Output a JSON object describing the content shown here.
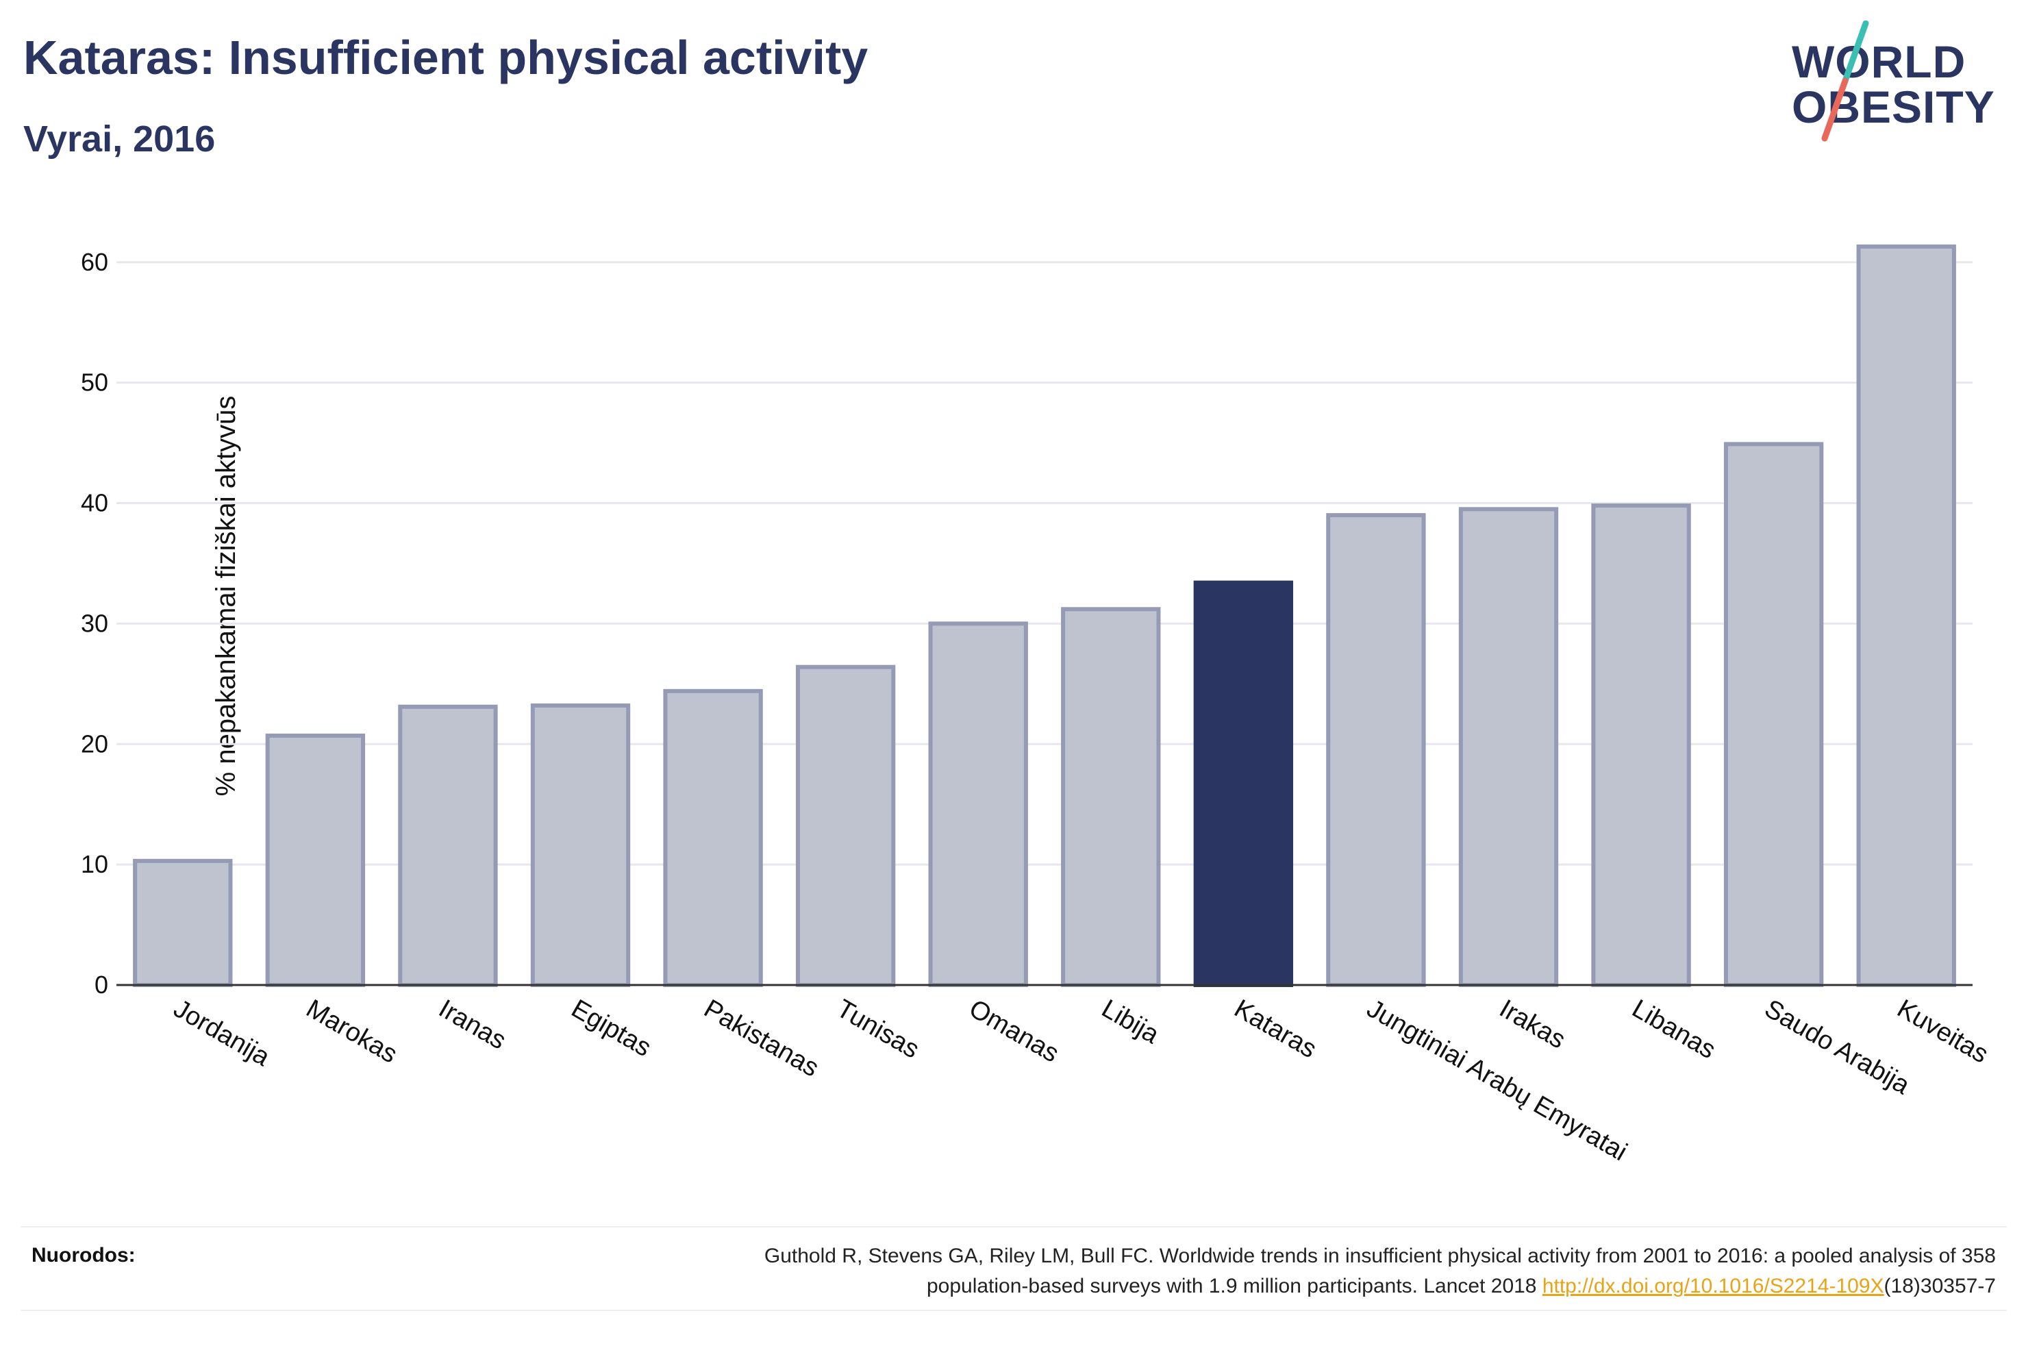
{
  "header": {
    "title": "Kataras: Insufficient physical activity",
    "subtitle": "Vyrai, 2016"
  },
  "logo": {
    "line1": "WORLD",
    "line2": "OBESITY",
    "slash_colors": [
      "#3bbfb2",
      "#e8685a"
    ]
  },
  "chart_data": {
    "type": "bar",
    "title": "Kataras: Insufficient physical activity",
    "subtitle": "Vyrai, 2016",
    "xlabel": "",
    "ylabel": "% nepakankamai fiziškai aktyvūs",
    "ylim": [
      0,
      63
    ],
    "yticks": [
      0,
      10,
      20,
      30,
      40,
      50,
      60
    ],
    "grid": true,
    "categories": [
      "Jordanija",
      "Marokas",
      "Iranas",
      "Egiptas",
      "Pakistanas",
      "Tunisas",
      "Omanas",
      "Libija",
      "Kataras",
      "Jungtiniai Arabų Emyratai",
      "Irakas",
      "Libanas",
      "Saudo Arabija",
      "Kuveitas"
    ],
    "values": [
      10.3,
      20.7,
      23.1,
      23.2,
      24.4,
      26.4,
      30.0,
      31.2,
      33.4,
      39.0,
      39.5,
      39.8,
      44.9,
      61.3
    ],
    "highlight": "Kataras",
    "colors": {
      "highlight": "#2a3561",
      "default_fill": "#bfc2cf",
      "default_stroke": "#959bb4"
    }
  },
  "footer": {
    "refs_label": "Nuorodos:",
    "refs_text_1": "Guthold R, Stevens GA, Riley LM, Bull FC. Worldwide trends in insufficient physical activity from 2001 to 2016: a pooled analysis of 358",
    "refs_text_2": "population-based surveys with 1.9 million participants. Lancet 2018 ",
    "refs_link": "http://dx.doi.org/10.1016/S2214-109X",
    "refs_text_3": "(18)30357-7"
  }
}
